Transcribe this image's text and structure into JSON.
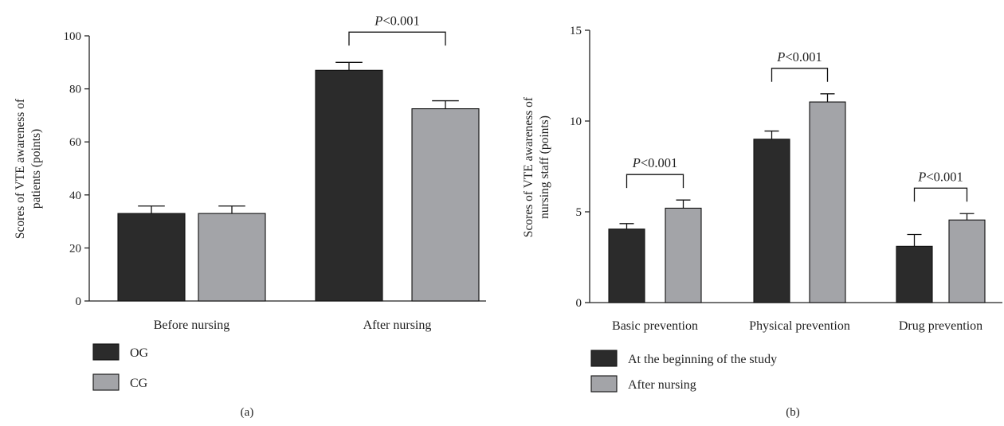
{
  "colors": {
    "dark": "#2b2b2b",
    "light": "#a3a4a8",
    "axis": "#222222"
  },
  "chart_data": [
    {
      "type": "bar",
      "panel_label": "(a)",
      "ylabel_lines": [
        "Scores of VTE awareness of",
        "patients (points)"
      ],
      "ylim": [
        0,
        100
      ],
      "yticks": [
        0,
        20,
        40,
        60,
        80,
        100
      ],
      "categories": [
        "Before nursing",
        "After nursing"
      ],
      "series": [
        {
          "name": "OG",
          "color": "dark",
          "values": [
            33,
            87
          ],
          "errors": [
            2.8,
            3
          ]
        },
        {
          "name": "CG",
          "color": "light",
          "values": [
            33,
            72.5
          ],
          "errors": [
            2.8,
            3
          ]
        }
      ],
      "significance": [
        {
          "category": 1,
          "text": "<0.001"
        }
      ],
      "significance_prefix": "P",
      "legend_position": "bottom-left",
      "grid": false
    },
    {
      "type": "bar",
      "panel_label": "(b)",
      "ylabel_lines": [
        "Scores of VTE awareness of",
        "nursing staff (points)"
      ],
      "ylim": [
        0,
        15
      ],
      "yticks": [
        0,
        5,
        10,
        15
      ],
      "categories": [
        "Basic prevention",
        "Physical prevention",
        "Drug prevention"
      ],
      "series": [
        {
          "name": "At the beginning of the study",
          "color": "dark",
          "values": [
            4.05,
            9,
            3.1
          ],
          "errors": [
            0.3,
            0.45,
            0.65
          ]
        },
        {
          "name": "After nursing",
          "color": "light",
          "values": [
            5.2,
            11.05,
            4.55
          ],
          "errors": [
            0.45,
            0.45,
            0.35
          ]
        }
      ],
      "significance": [
        {
          "category": 0,
          "text": "<0.001"
        },
        {
          "category": 1,
          "text": "<0.001"
        },
        {
          "category": 2,
          "text": "<0.001"
        }
      ],
      "significance_prefix": "P",
      "legend_position": "bottom-left",
      "grid": false
    }
  ]
}
